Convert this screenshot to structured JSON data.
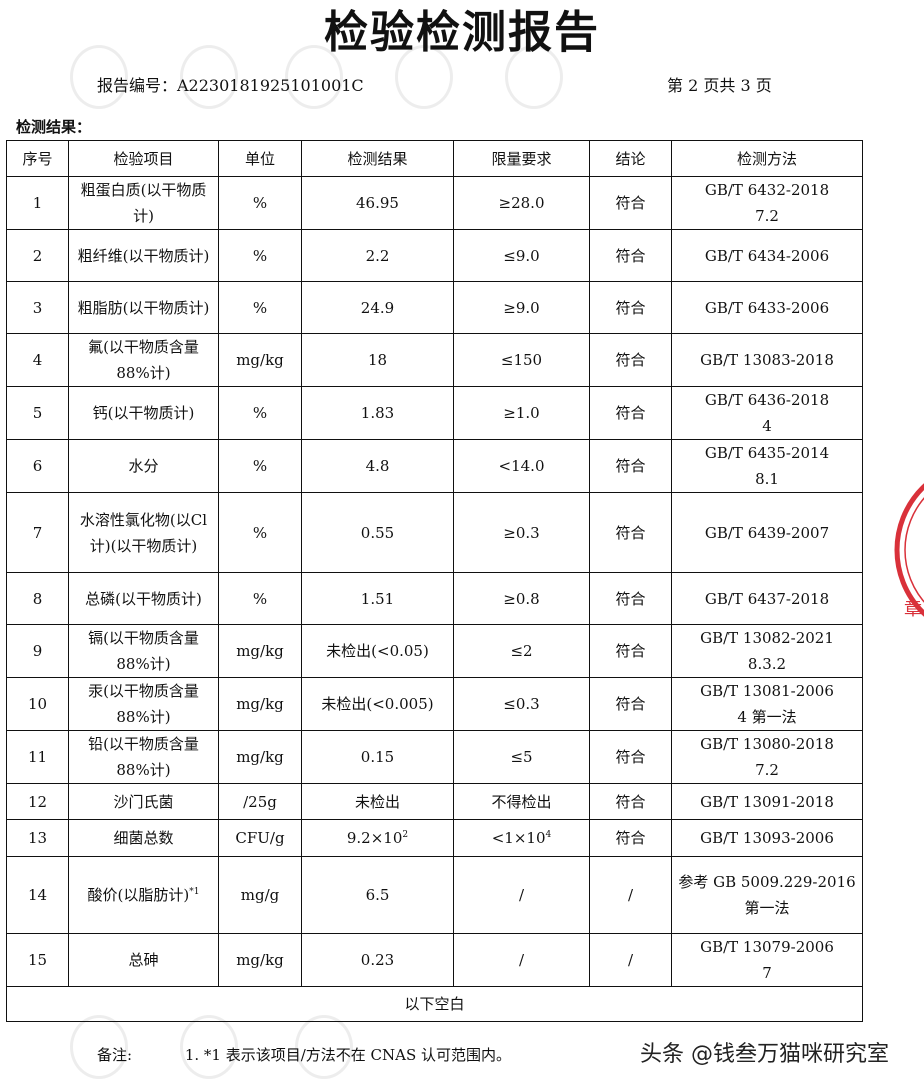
{
  "title": "检验检测报告",
  "report_number": "报告编号：A2230181925101001C",
  "page_info": "第 2 页共 3 页",
  "section_title": "检测结果：",
  "headers": [
    "序号",
    "检验项目",
    "单位",
    "检测结果",
    "限量要求",
    "结论",
    "检测方法"
  ],
  "rows": [
    {
      "no": "1",
      "item": "粗蛋白质(以干物质计)",
      "unit": "%",
      "result": "46.95",
      "limit": "≥28.0",
      "conclusion": "符合",
      "method": [
        "GB/T 6432-2018",
        "7.2"
      ]
    },
    {
      "no": "2",
      "item": "粗纤维(以干物质计)",
      "unit": "%",
      "result": "2.2",
      "limit": "≤9.0",
      "conclusion": "符合",
      "method": [
        "GB/T 6434-2006"
      ]
    },
    {
      "no": "3",
      "item": "粗脂肪(以干物质计)",
      "unit": "%",
      "result": "24.9",
      "limit": "≥9.0",
      "conclusion": "符合",
      "method": [
        "GB/T 6433-2006"
      ]
    },
    {
      "no": "4",
      "item": "氟(以干物质含量88%计)",
      "unit": "mg/kg",
      "result": "18",
      "limit": "≤150",
      "conclusion": "符合",
      "method": [
        "GB/T 13083-2018"
      ]
    },
    {
      "no": "5",
      "item": "钙(以干物质计)",
      "unit": "%",
      "result": "1.83",
      "limit": "≥1.0",
      "conclusion": "符合",
      "method": [
        "GB/T 6436-2018",
        "4"
      ]
    },
    {
      "no": "6",
      "item": "水分",
      "unit": "%",
      "result": "4.8",
      "limit": "<14.0",
      "conclusion": "符合",
      "method": [
        "GB/T 6435-2014",
        "8.1"
      ]
    },
    {
      "no": "7",
      "item": "水溶性氯化物(以Cl计)(以干物质计)",
      "unit": "%",
      "result": "0.55",
      "limit": "≥0.3",
      "conclusion": "符合",
      "method": [
        "GB/T 6439-2007"
      ]
    },
    {
      "no": "8",
      "item": "总磷(以干物质计)",
      "unit": "%",
      "result": "1.51",
      "limit": "≥0.8",
      "conclusion": "符合",
      "method": [
        "GB/T 6437-2018"
      ]
    },
    {
      "no": "9",
      "item": "镉(以干物质含量88%计)",
      "unit": "mg/kg",
      "result": "未检出(<0.05)",
      "limit": "≤2",
      "conclusion": "符合",
      "method": [
        "GB/T 13082-2021",
        "8.3.2"
      ]
    },
    {
      "no": "10",
      "item": "汞(以干物质含量88%计)",
      "unit": "mg/kg",
      "result": "未检出(<0.005)",
      "limit": "≤0.3",
      "conclusion": "符合",
      "method": [
        "GB/T 13081-2006",
        "4 第一法"
      ]
    },
    {
      "no": "11",
      "item": "铅(以干物质含量88%计)",
      "unit": "mg/kg",
      "result": "0.15",
      "limit": "≤5",
      "conclusion": "符合",
      "method": [
        "GB/T 13080-2018",
        "7.2"
      ]
    },
    {
      "no": "12",
      "item": "沙门氏菌",
      "unit": "/25g",
      "result": "未检出",
      "limit": "不得检出",
      "conclusion": "符合",
      "method": [
        "GB/T 13091-2018"
      ]
    },
    {
      "no": "13",
      "item": "细菌总数",
      "unit": "CFU/g",
      "result": "9.2×10",
      "result_sup": "2",
      "limit": "<1×10",
      "limit_sup": "4",
      "conclusion": "符合",
      "method": [
        "GB/T 13093-2006"
      ]
    },
    {
      "no": "14",
      "item": "酸价(以脂肪计)",
      "item_sup": "*1",
      "unit": "mg/g",
      "result": "6.5",
      "limit": "/",
      "conclusion": "/",
      "method": [
        "参考 GB 5009.229-2016",
        "第一法"
      ]
    },
    {
      "no": "15",
      "item": "总砷",
      "unit": "mg/kg",
      "result": "0.23",
      "limit": "/",
      "conclusion": "/",
      "method": [
        "GB/T 13079-2006",
        "7"
      ]
    }
  ],
  "blank_note": "以下空白",
  "remarks_label": "备注:",
  "remarks": [
    "1. *1 表示该项目/方法不在 CNAS 认可范围内。"
  ],
  "watermark_text": "头条 @钱叁万猫咪研究室",
  "stamp_color": "#d9313a"
}
